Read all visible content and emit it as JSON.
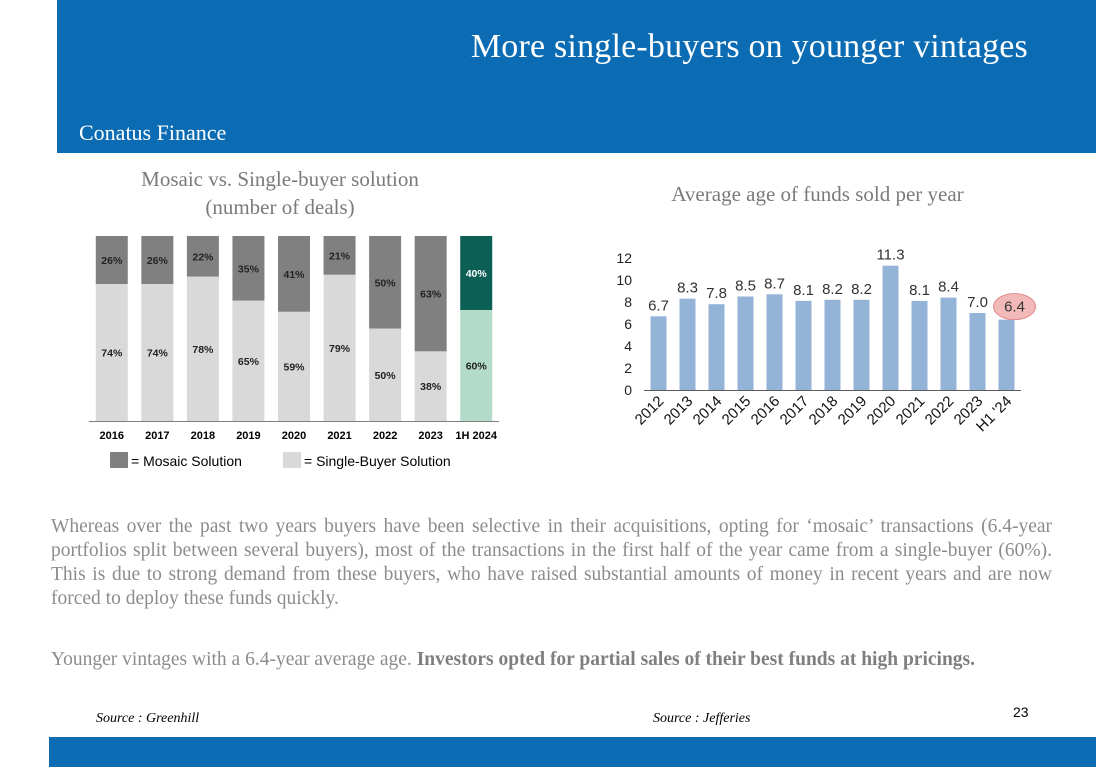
{
  "header": {
    "title": "More single-buyers on younger vintages",
    "brand": "Conatus Finance"
  },
  "colors": {
    "header_blue": "#0b6cb4",
    "mosaic": "#808080",
    "single_buyer": "#d9d9d9",
    "highlight_mosaic": "#0b5f55",
    "highlight_single": "#b3dbc9",
    "bar_blue": "#93b3d7",
    "highlight_circle": "#f2b9b9"
  },
  "left_chart": {
    "title_line1": "Mosaic vs. Single-buyer solution",
    "title_line2": "(number of deals)",
    "source": "Source : Greenhill"
  },
  "right_chart": {
    "title": "Average age of funds sold per year",
    "source": "Source : Jefferies"
  },
  "chart_data": [
    {
      "type": "bar",
      "stacked": true,
      "normalized": true,
      "categories": [
        "2016",
        "2017",
        "2018",
        "2019",
        "2020",
        "2021",
        "2022",
        "2023",
        "1H 2024"
      ],
      "series": [
        {
          "name": "= Mosaic Solution",
          "values": [
            26,
            26,
            22,
            35,
            41,
            21,
            50,
            63,
            40
          ],
          "labels": [
            "26%",
            "26%",
            "22%",
            "35%",
            "41%",
            "21%",
            "50%",
            "63%",
            "40%"
          ]
        },
        {
          "name": "= Single-Buyer Solution",
          "values": [
            74,
            74,
            78,
            65,
            59,
            79,
            50,
            38,
            60
          ],
          "labels": [
            "74%",
            "74%",
            "78%",
            "65%",
            "59%",
            "79%",
            "50%",
            "38%",
            "60%"
          ]
        }
      ],
      "highlight_category": "1H 2024",
      "ylim": [
        0,
        100
      ],
      "legend": "bottom"
    },
    {
      "type": "bar",
      "title": "Average age of funds sold per year",
      "categories": [
        "2012",
        "2013",
        "2014",
        "2015",
        "2016",
        "2017",
        "2018",
        "2019",
        "2020",
        "2021",
        "2022",
        "2023",
        "H1 '24"
      ],
      "values": [
        6.7,
        8.3,
        7.8,
        8.5,
        8.7,
        8.1,
        8.2,
        8.2,
        11.3,
        8.1,
        8.4,
        7.0,
        6.4
      ],
      "value_labels": [
        "6.7",
        "8.3",
        "7.8",
        "8.5",
        "8.7",
        "8.1",
        "8.2",
        "8.2",
        "11.3",
        "8.1",
        "8.4",
        "7.0",
        "6.4"
      ],
      "yticks": [
        "0",
        "2",
        "4",
        "6",
        "8",
        "10",
        "12"
      ],
      "ylim": [
        0,
        12
      ],
      "highlight_category": "H1 '24",
      "grid": false
    }
  ],
  "body": {
    "paragraph1": "Whereas over the past two years buyers have been selective in their acquisitions, opting for ‘mosaic’ transactions (6.4-year portfolios split between several buyers), most of the transactions in the first half of the year came from a single-buyer (60%). This is due to strong demand from these buyers, who have raised substantial amounts of money in recent years and are now forced to deploy these funds quickly.",
    "paragraph2_normal": "Younger vintages with a 6.4-year average age. ",
    "paragraph2_bold": "Investors opted for partial sales of their best funds at high pricings."
  },
  "page_number": "23"
}
